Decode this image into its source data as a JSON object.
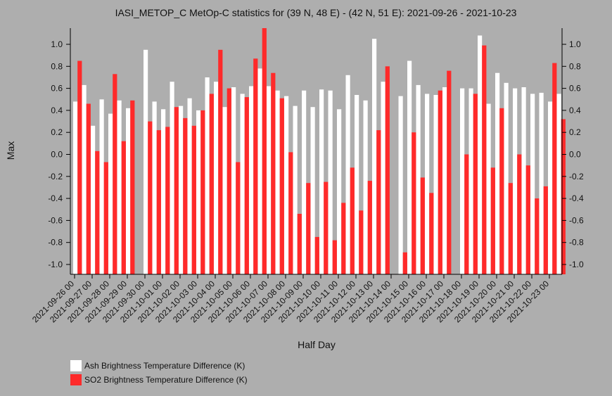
{
  "chart_data": {
    "type": "bar",
    "title": "IASI_METOP_C MetOp-C statistics for (39 N, 48 E) - (42 N, 51 E): 2021-09-26 - 2021-10-23",
    "xlabel": "Half Day",
    "ylabel": "Max",
    "ylim": [
      -1.1,
      1.15
    ],
    "yticks": [
      "1.0",
      "0.8",
      "0.6",
      "0.4",
      "0.2",
      "0.0",
      "-0.2",
      "-0.4",
      "-0.6",
      "-0.8",
      "-1.0"
    ],
    "xticks": [
      "2021-09-26 00",
      "2021-09-27 00",
      "2021-09-28 00",
      "2021-09-29 00",
      "2021-09-30 00",
      "2021-10-01 00",
      "2021-10-02 00",
      "2021-10-03 00",
      "2021-10-04 00",
      "2021-10-05 00",
      "2021-10-06 00",
      "2021-10-07 00",
      "2021-10-08 00",
      "2021-10-09 00",
      "2021-10-10 00",
      "2021-10-11 00",
      "2021-10-12 00",
      "2021-10-13 00",
      "2021-10-14 00",
      "2021-10-15 00",
      "2021-10-16 00",
      "2021-10-17 00",
      "2021-10-18 00",
      "2021-10-19 00",
      "2021-10-20 00",
      "2021-10-21 00",
      "2021-10-22 00",
      "2021-10-23 00"
    ],
    "legend_position": "bottom-left",
    "grid": false,
    "series": [
      {
        "name": "Ash Brightness Temperature Difference (K)",
        "color": "#ffffff",
        "values": [
          0.48,
          0.63,
          0.26,
          0.5,
          0.37,
          0.49,
          0.42,
          null,
          0.95,
          0.48,
          0.41,
          0.66,
          0.44,
          0.51,
          0.4,
          0.7,
          0.66,
          0.43,
          0.61,
          0.55,
          0.62,
          0.78,
          0.62,
          0.58,
          0.53,
          0.44,
          0.58,
          0.43,
          0.59,
          0.58,
          0.41,
          0.72,
          0.54,
          0.49,
          1.05,
          0.66,
          null,
          0.53,
          0.85,
          0.63,
          0.55,
          0.54,
          0.61,
          null,
          0.6,
          0.6,
          1.08,
          0.46,
          0.74,
          0.65,
          0.6,
          0.61,
          0.55,
          0.56,
          0.48,
          0.55
        ]
      },
      {
        "name": "SO2 Brightness Temperature Difference (K)",
        "color": "#ff2a2a",
        "values": [
          0.85,
          0.46,
          0.03,
          -0.07,
          0.73,
          0.12,
          0.49,
          null,
          0.3,
          0.22,
          0.25,
          0.43,
          0.33,
          0.26,
          0.4,
          0.55,
          0.95,
          0.6,
          -0.07,
          0.52,
          0.87,
          1.15,
          0.74,
          0.51,
          0.02,
          -0.54,
          -0.26,
          -0.75,
          -0.25,
          -0.78,
          -0.44,
          -0.12,
          -0.51,
          -0.24,
          0.22,
          0.8,
          null,
          -0.89,
          0.2,
          -0.21,
          -0.35,
          0.58,
          0.76,
          null,
          0.0,
          0.55,
          0.99,
          -0.12,
          0.42,
          -0.26,
          0.0,
          -0.1,
          -0.4,
          -0.29,
          0.83,
          0.32
        ]
      }
    ]
  }
}
